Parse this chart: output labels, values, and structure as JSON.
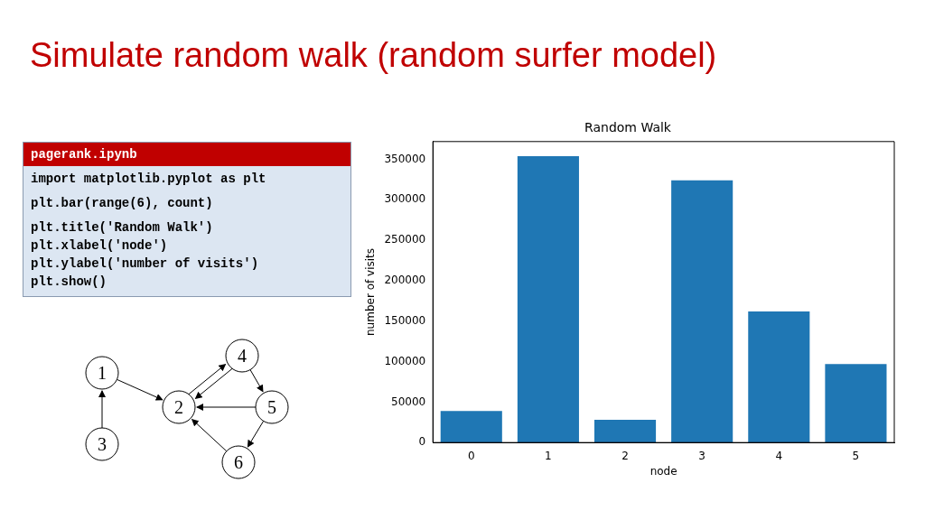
{
  "chart_data": [
    {
      "type": "other",
      "title": "Simulate random walk (random surfer model)",
      "subtitle": "pagerank.ipynb",
      "annotations": [
        "import matplotlib.pyplot as plt",
        "plt.bar(range(6), count)",
        "plt.title('Random Walk')",
        "plt.xlabel('node')",
        "plt.ylabel('number of visits')",
        "plt.show()"
      ]
    },
    {
      "type": "bar",
      "title": "Random Walk",
      "xlabel": "node",
      "ylabel": "number of visits",
      "categories": [
        "0",
        "1",
        "2",
        "3",
        "4",
        "5"
      ],
      "values": [
        39000,
        354000,
        28000,
        324000,
        162000,
        97000
      ],
      "color": "#1f77b4",
      "ylim": [
        0,
        372000
      ],
      "yticks": [
        0,
        50000,
        100000,
        150000,
        200000,
        250000,
        300000,
        350000
      ],
      "grid": false
    },
    {
      "type": "other",
      "annotations": [
        "1",
        "2",
        "3",
        "4",
        "5",
        "6"
      ]
    }
  ]
}
